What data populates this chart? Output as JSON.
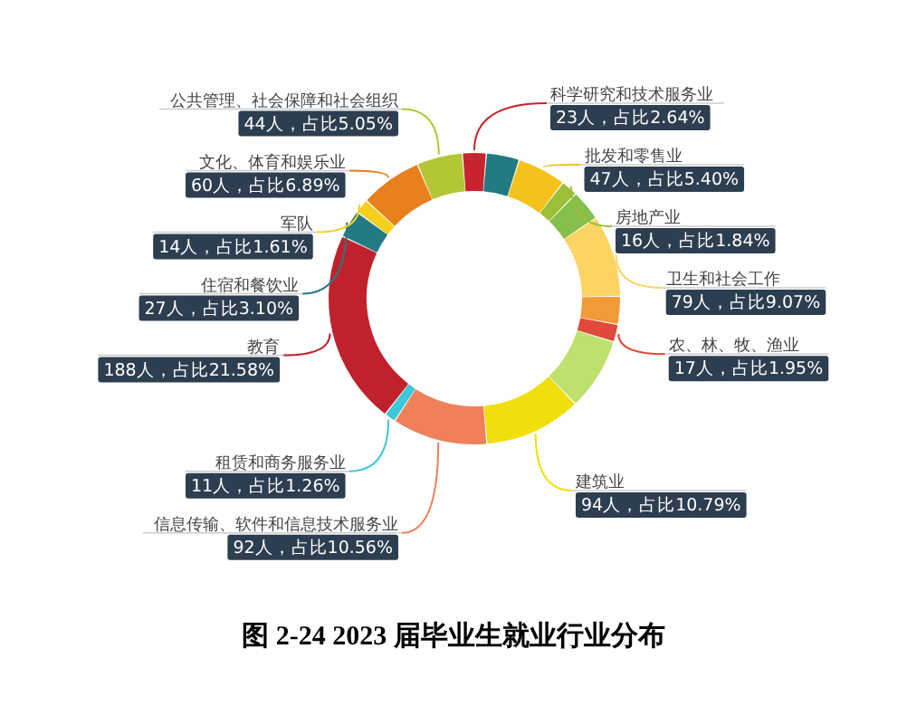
{
  "chart_data": {
    "type": "donut",
    "title": "图 2-24 2023 届毕业生就业行业分布",
    "categories": [
      "科学研究和技术服务业",
      null,
      "批发和零售业",
      "房地产业",
      null,
      "卫生和社会工作",
      null,
      "农、林、牧、渔业",
      null,
      "建筑业",
      "信息传输、软件和信息技术服务业",
      "租赁和商务服务业",
      "教育",
      "住宿和餐饮业",
      "军队",
      "文化、体育和娱乐业",
      "公共管理、社会保障和社会组织"
    ],
    "values": [
      23,
      32,
      47,
      16,
      30,
      79,
      27,
      17,
      70,
      94,
      92,
      11,
      188,
      27,
      14,
      60,
      44
    ],
    "value_labels": [
      "23人，占比2.64%",
      null,
      "47人，占比5.40%",
      "16人，占比1.84%",
      null,
      "79人，占比9.07%",
      null,
      "17人，占比1.95%",
      null,
      "94人，占比10.79%",
      "92人，占比10.56%",
      "11人，占比1.26%",
      "188人，占比21.58%",
      "27人，占比3.10%",
      "14人，占比1.61%",
      "60人，占比6.89%",
      "44人，占比5.05%"
    ],
    "colors": [
      "#c8242f",
      "#237a84",
      "#f5c21b",
      "#9cbf3a",
      "#86bf4b",
      "#fbd464",
      "#f29a38",
      "#e04a3a",
      "#bde06e",
      "#f0df0a",
      "#ef805a",
      "#3cc8d8",
      "#c0222d",
      "#237a84",
      "#f5d020",
      "#e8801e",
      "#b5c635"
    ]
  }
}
